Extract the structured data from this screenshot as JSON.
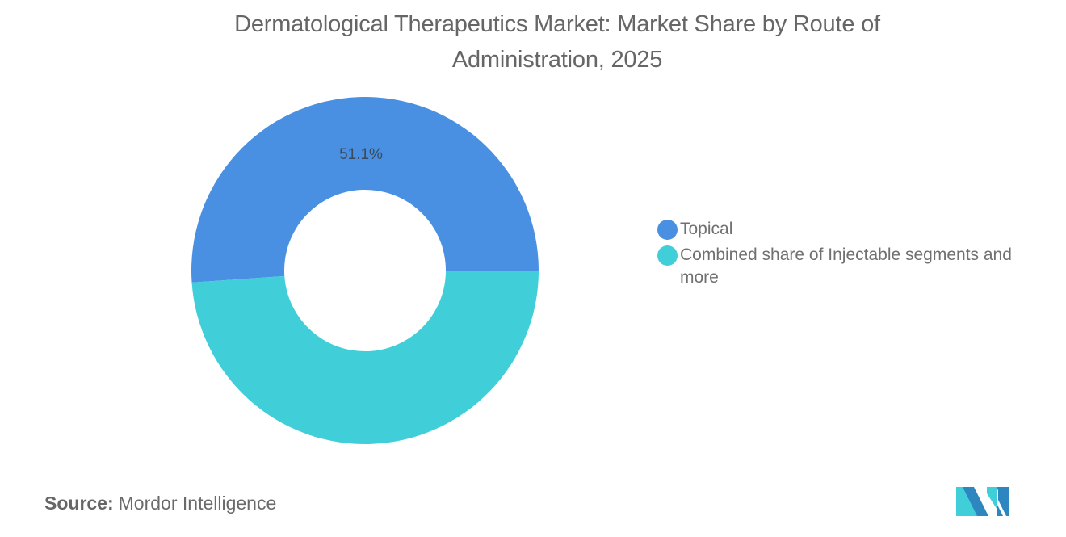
{
  "title": "Dermatological Therapeutics Market: Market Share by Route of Administration, 2025",
  "source": {
    "label": "Source:",
    "value": "Mordor Intelligence"
  },
  "logo": {
    "icon": "mordor-intelligence-logo-icon"
  },
  "legend": [
    {
      "label": "Topical",
      "color": "#4A90E2"
    },
    {
      "label": "Combined share of Injectable segments and more",
      "color": "#40CED8"
    }
  ],
  "data_labels": [
    {
      "text": "51.1%"
    }
  ],
  "chart_data": {
    "type": "pie",
    "variant": "donut",
    "title": "Dermatological Therapeutics Market: Market Share by Route of Administration, 2025",
    "categories": [
      "Topical",
      "Combined share of Injectable segments and more"
    ],
    "values": [
      51.1,
      48.9
    ],
    "unit": "%",
    "colors": [
      "#4A90E2",
      "#40CED8"
    ],
    "data_labels": [
      "51.1%",
      ""
    ],
    "legend_position": "right",
    "start_angle": "3 o'clock, counter-clockwise"
  }
}
